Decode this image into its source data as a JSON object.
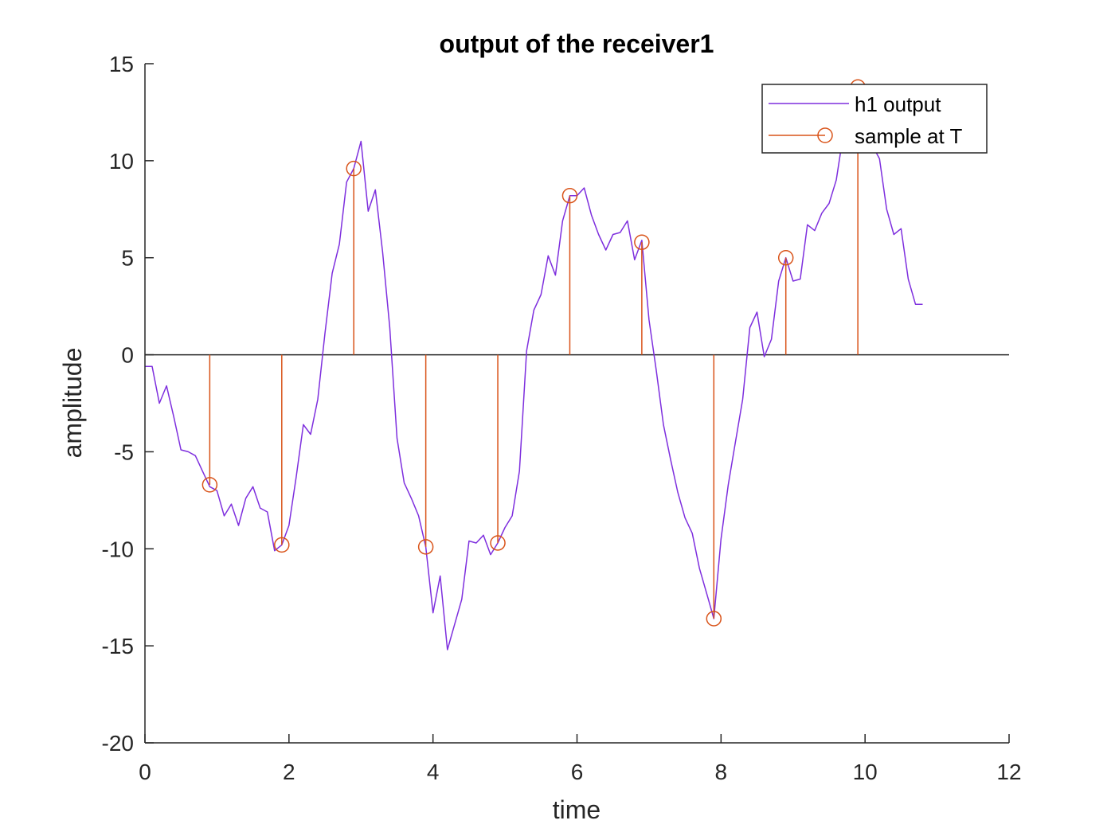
{
  "chart_data": {
    "type": "line",
    "title": "output of the receiver1",
    "xlabel": "time",
    "ylabel": "amplitude",
    "xlim": [
      0,
      12
    ],
    "ylim": [
      -20,
      15
    ],
    "xticks": [
      0,
      2,
      4,
      6,
      8,
      10,
      12
    ],
    "yticks": [
      -20,
      -15,
      -10,
      -5,
      0,
      5,
      10,
      15
    ],
    "grid": false,
    "legend_position": "top-right",
    "series": [
      {
        "name": "h1 output",
        "kind": "line",
        "color": "#7E2FDE",
        "x": [
          0,
          0.1,
          0.2,
          0.3,
          0.4,
          0.5,
          0.6,
          0.7,
          0.8,
          0.9,
          1.0,
          1.1,
          1.2,
          1.3,
          1.4,
          1.5,
          1.6,
          1.7,
          1.8,
          1.9,
          2.0,
          2.1,
          2.2,
          2.3,
          2.4,
          2.5,
          2.6,
          2.7,
          2.8,
          2.9,
          3.0,
          3.1,
          3.2,
          3.3,
          3.4,
          3.5,
          3.6,
          3.7,
          3.8,
          3.9,
          4.0,
          4.1,
          4.2,
          4.3,
          4.4,
          4.5,
          4.6,
          4.7,
          4.8,
          4.9,
          5.0,
          5.1,
          5.2,
          5.3,
          5.4,
          5.5,
          5.6,
          5.7,
          5.8,
          5.9,
          6.0,
          6.1,
          6.2,
          6.3,
          6.4,
          6.5,
          6.6,
          6.7,
          6.8,
          6.9,
          7.0,
          7.1,
          7.2,
          7.3,
          7.4,
          7.5,
          7.6,
          7.7,
          7.8,
          7.9,
          8.0,
          8.1,
          8.2,
          8.3,
          8.4,
          8.5,
          8.6,
          8.7,
          8.8,
          8.9,
          9.0,
          9.1,
          9.2,
          9.3,
          9.4,
          9.5,
          9.6,
          9.7,
          9.8,
          9.9,
          10.0,
          10.1,
          10.2,
          10.3,
          10.4,
          10.5,
          10.6,
          10.7,
          10.8
        ],
        "y": [
          -0.6,
          -0.6,
          -2.5,
          -1.6,
          -3.2,
          -4.9,
          -5.0,
          -5.2,
          -6.0,
          -6.8,
          -7.0,
          -8.3,
          -7.7,
          -8.8,
          -7.4,
          -6.8,
          -7.9,
          -8.1,
          -10.1,
          -9.8,
          -8.8,
          -6.3,
          -3.6,
          -4.1,
          -2.3,
          1.1,
          4.2,
          5.7,
          8.9,
          9.6,
          11.0,
          7.4,
          8.5,
          5.3,
          1.4,
          -4.3,
          -6.6,
          -7.4,
          -8.3,
          -9.9,
          -13.3,
          -11.4,
          -15.2,
          -13.9,
          -12.6,
          -9.6,
          -9.7,
          -9.3,
          -10.3,
          -9.7,
          -8.9,
          -8.3,
          -6.0,
          0.2,
          2.3,
          3.1,
          5.1,
          4.1,
          6.9,
          8.2,
          8.2,
          8.6,
          7.2,
          6.2,
          5.4,
          6.2,
          6.3,
          6.9,
          4.9,
          5.9,
          1.8,
          -0.8,
          -3.6,
          -5.4,
          -7.1,
          -8.4,
          -9.2,
          -11.0,
          -12.3,
          -13.6,
          -9.5,
          -6.7,
          -4.5,
          -2.3,
          1.4,
          2.2,
          -0.1,
          0.8,
          3.8,
          5.0,
          3.8,
          3.9,
          6.7,
          6.4,
          7.3,
          7.8,
          9.0,
          11.4,
          13.3,
          13.8,
          13.0,
          10.8,
          10.1,
          7.5,
          6.2,
          6.5,
          3.9,
          2.6,
          2.6
        ]
      },
      {
        "name": "sample at T",
        "kind": "stem",
        "color": "#D95319",
        "x": [
          0.9,
          1.9,
          2.9,
          3.9,
          4.9,
          5.9,
          6.9,
          7.9,
          8.9,
          9.9
        ],
        "y": [
          -6.7,
          -9.8,
          9.6,
          -9.9,
          -9.7,
          8.2,
          5.8,
          -13.6,
          5.0,
          13.8
        ]
      }
    ],
    "baseline": 0
  }
}
